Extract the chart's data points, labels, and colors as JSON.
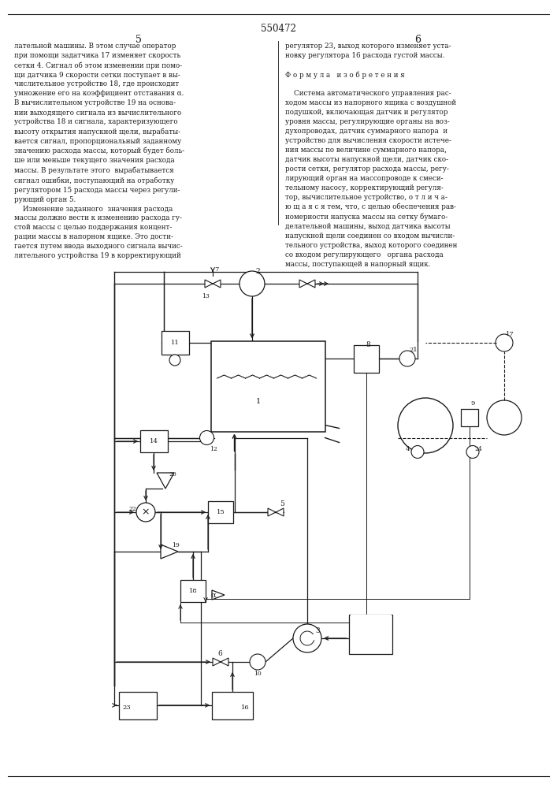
{
  "title": "550472",
  "bg_color": "#ffffff",
  "line_color": "#1a1a1a",
  "left_text": "лательной машины. В этом случае оператор\nпри помощи задатчика 17 изменяет скорость\nсетки 4. Сигнал об этом изменении при помо-\nщи датчика 9 скорости сетки поступает в вы-\nчислительное устройство 18, где происходит\nумножение его на коэффициент отставания α.\nВ вычислительном устройстве 19 на основа-\nнии выходящего сигнала из вычислительного\nустройства 18 и сигнала, характеризующего\nвысоту открытия напускной щели, вырабаты-\nвается сигнал, пропорциональный заданному\nзначению расхода массы, который будет боль-\nше или меньше текущего значения расхода\nмассы. В результате этого  вырабатывается\nсигнал ошибки, поступающий на отработку\nрегулятором 15 расхода массы через регули-\nрующий орган 5.\n    Изменение заданного  значения расхода\nмассы должно вести к изменению расхода гу-\nстой массы с целью поддержания концент-\nрации массы в напорном ящике. Это дости-\nгается путем ввода выходного сигнала вычис-\nлительного устройства 19 в корректирующий",
  "right_text": "регулятор 23, выход которого изменяет уста-\nновку регулятора 16 расхода густой массы.\n\nФ о р м у л а   и з о б р е т е н и я\n\n    Система автоматического управления рас-\nходом массы из напорного ящика с воздушной\nподушкой, включающая датчик и регулятор\nуровня массы, регулирующие органы на воз-\nдухопроводах, датчик суммарного напора  и\nустройство для вычисления скорости истече-\nния массы по величине суммарного напора,\nдатчик высоты напускной щели, датчик ско-\nрости сетки, регулятор расхода массы, регу-\nлирующий орган на массопроводе к смеси-\nтельному насосу, корректирующий регуля-\nтор, вычислительное устройство, о т л и ч а-\nю щ а я с я тем, что, с целью обеспечения рав-\nномерности напуска массы на сетку бумаго-\nделательной машины, выход датчика высоты\nнапускной щели соединен со входом вычисли-\nтельного устройства, выход которого соединен\nсо входом регулирующего   органа расхода\nмассы, поступающей в напорный ящик."
}
